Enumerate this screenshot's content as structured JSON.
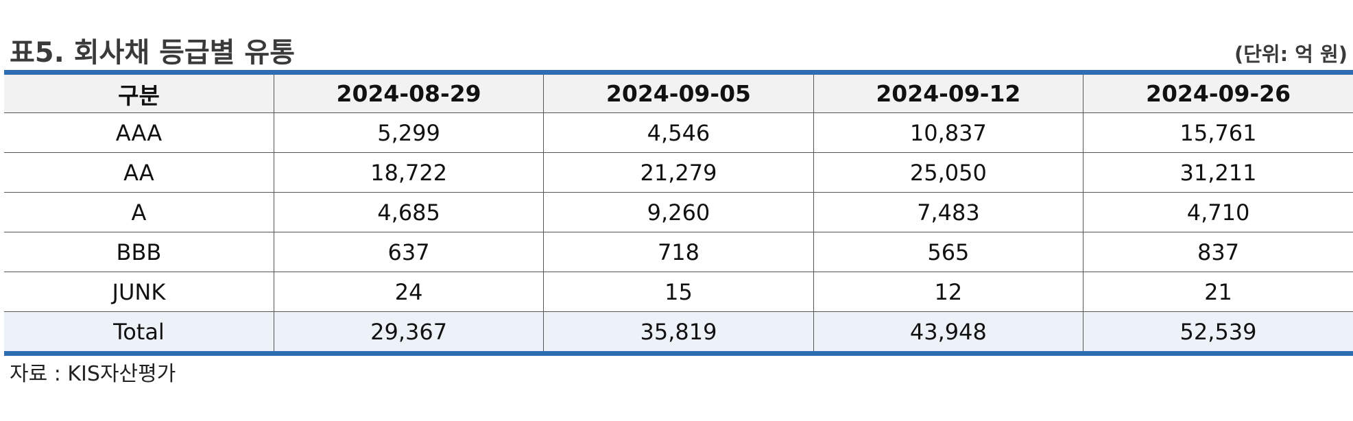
{
  "title": "표5. 회사채 등급별 유통",
  "unit": "(단위: 억 원)",
  "table": {
    "headers": [
      "구분",
      "2024-08-29",
      "2024-09-05",
      "2024-09-12",
      "2024-09-26"
    ],
    "rows": [
      [
        "AAA",
        "5,299",
        "4,546",
        "10,837",
        "15,761"
      ],
      [
        "AA",
        "18,722",
        "21,279",
        "25,050",
        "31,211"
      ],
      [
        "A",
        "4,685",
        "9,260",
        "7,483",
        "4,710"
      ],
      [
        "BBB",
        "637",
        "718",
        "565",
        "837"
      ],
      [
        "JUNK",
        "24",
        "15",
        "12",
        "21"
      ],
      [
        "Total",
        "29,367",
        "35,819",
        "43,948",
        "52,539"
      ]
    ]
  },
  "source": "자료 : KIS자산평가",
  "colors": {
    "rule": "#2e6db1",
    "header_bg": "#f2f2f2",
    "total_bg": "#edf2f8"
  }
}
